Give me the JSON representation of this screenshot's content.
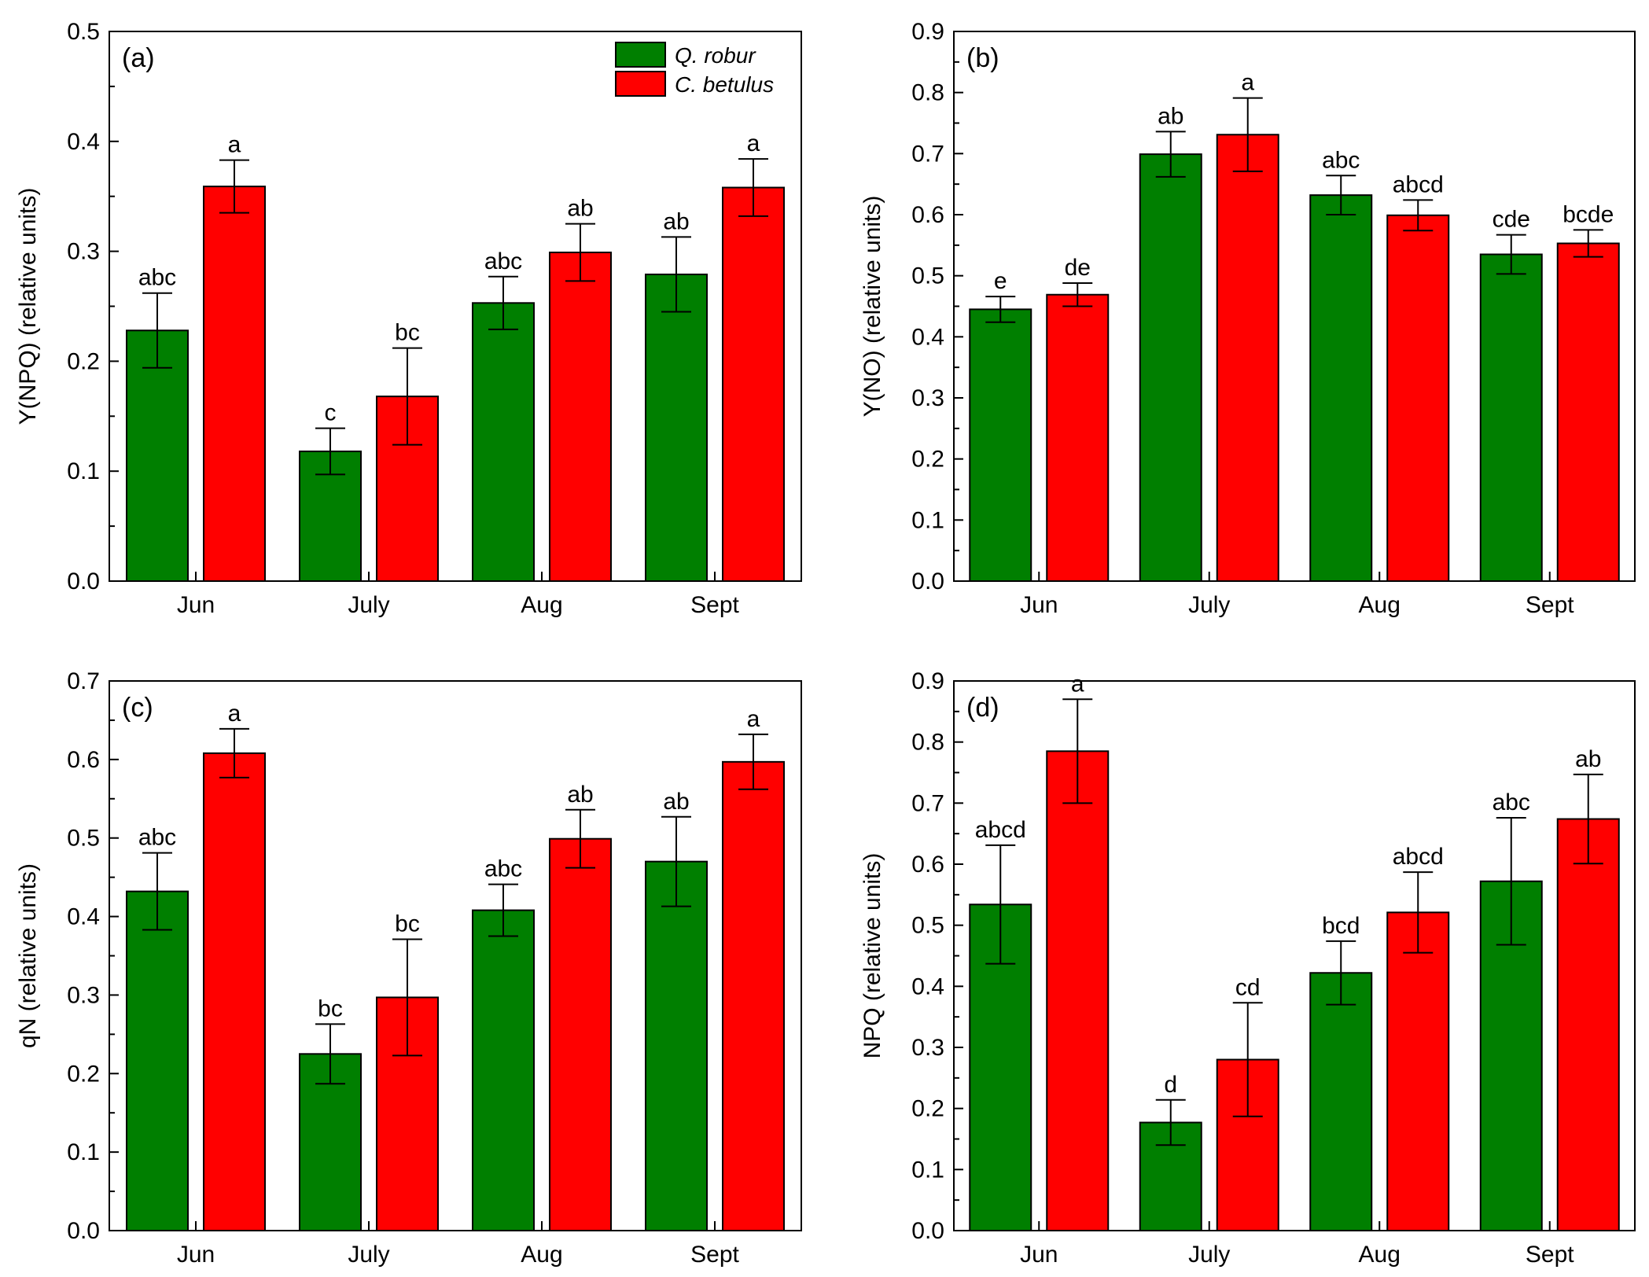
{
  "legend": [
    {
      "name": "Q. robur",
      "color": "#007f00"
    },
    {
      "name": "C. betulus",
      "color": "#ff0000"
    }
  ],
  "chart_data": [
    {
      "type": "bar",
      "panel_label": "(a)",
      "title": "",
      "xlabel": "",
      "ylabel": "Y(NPQ) (relative units)",
      "ylim": [
        0,
        0.5
      ],
      "yticks": [
        "0.0",
        "0.1",
        "0.2",
        "0.3",
        "0.4",
        "0.5"
      ],
      "categories": [
        "Jun",
        "July",
        "Aug",
        "Sept"
      ],
      "series": [
        {
          "name": "Q. robur",
          "color": "#007f00",
          "values": [
            0.228,
            0.118,
            0.253,
            0.279
          ],
          "errors": [
            0.034,
            0.021,
            0.024,
            0.034
          ],
          "letters": [
            "abc",
            "c",
            "abc",
            "ab"
          ]
        },
        {
          "name": "C. betulus",
          "color": "#ff0000",
          "values": [
            0.359,
            0.168,
            0.299,
            0.358
          ],
          "errors": [
            0.024,
            0.044,
            0.026,
            0.026
          ],
          "letters": [
            "a",
            "bc",
            "ab",
            "a"
          ]
        }
      ],
      "show_legend": true
    },
    {
      "type": "bar",
      "panel_label": "(b)",
      "title": "",
      "xlabel": "",
      "ylabel": "Y(NO) (relative units)",
      "ylim": [
        0,
        0.9
      ],
      "yticks": [
        "0.0",
        "0.1",
        "0.2",
        "0.3",
        "0.4",
        "0.5",
        "0.6",
        "0.7",
        "0.8",
        "0.9"
      ],
      "categories": [
        "Jun",
        "July",
        "Aug",
        "Sept"
      ],
      "series": [
        {
          "name": "Q. robur",
          "color": "#007f00",
          "values": [
            0.445,
            0.699,
            0.632,
            0.535
          ],
          "errors": [
            0.021,
            0.037,
            0.032,
            0.032
          ],
          "letters": [
            "e",
            "ab",
            "abc",
            "cde"
          ]
        },
        {
          "name": "C. betulus",
          "color": "#ff0000",
          "values": [
            0.469,
            0.731,
            0.599,
            0.553
          ],
          "errors": [
            0.019,
            0.06,
            0.025,
            0.022
          ],
          "letters": [
            "de",
            "a",
            "abcd",
            "bcde"
          ]
        }
      ],
      "show_legend": false
    },
    {
      "type": "bar",
      "panel_label": "(c)",
      "title": "",
      "xlabel": "",
      "ylabel": "qN (relative units)",
      "ylim": [
        0,
        0.7
      ],
      "yticks": [
        "0.0",
        "0.1",
        "0.2",
        "0.3",
        "0.4",
        "0.5",
        "0.6",
        "0.7"
      ],
      "categories": [
        "Jun",
        "July",
        "Aug",
        "Sept"
      ],
      "series": [
        {
          "name": "Q. robur",
          "color": "#007f00",
          "values": [
            0.432,
            0.225,
            0.408,
            0.47
          ],
          "errors": [
            0.049,
            0.038,
            0.033,
            0.057
          ],
          "letters": [
            "abc",
            "bc",
            "abc",
            "ab"
          ]
        },
        {
          "name": "C. betulus",
          "color": "#ff0000",
          "values": [
            0.608,
            0.297,
            0.499,
            0.597
          ],
          "errors": [
            0.031,
            0.074,
            0.037,
            0.035
          ],
          "letters": [
            "a",
            "bc",
            "ab",
            "a"
          ]
        }
      ],
      "show_legend": false
    },
    {
      "type": "bar",
      "panel_label": "(d)",
      "title": "",
      "xlabel": "",
      "ylabel": "NPQ (relative units)",
      "ylim": [
        0,
        0.9
      ],
      "yticks": [
        "0.0",
        "0.1",
        "0.2",
        "0.3",
        "0.4",
        "0.5",
        "0.6",
        "0.7",
        "0.8",
        "0.9"
      ],
      "categories": [
        "Jun",
        "July",
        "Aug",
        "Sept"
      ],
      "series": [
        {
          "name": "Q. robur",
          "color": "#007f00",
          "values": [
            0.534,
            0.177,
            0.422,
            0.572
          ],
          "errors": [
            0.097,
            0.037,
            0.052,
            0.104
          ],
          "letters": [
            "abcd",
            "d",
            "bcd",
            "abc"
          ]
        },
        {
          "name": "C. betulus",
          "color": "#ff0000",
          "values": [
            0.785,
            0.28,
            0.521,
            0.674
          ],
          "errors": [
            0.085,
            0.093,
            0.066,
            0.073
          ],
          "letters": [
            "a",
            "cd",
            "abcd",
            "ab"
          ]
        }
      ],
      "show_legend": false
    }
  ]
}
